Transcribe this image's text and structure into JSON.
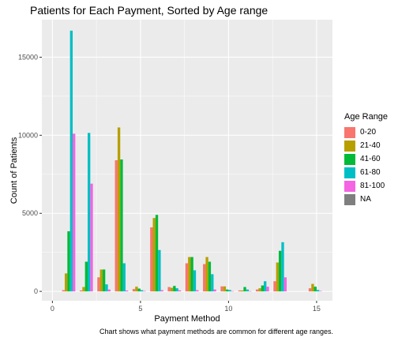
{
  "chart_data": {
    "type": "bar",
    "title": "Patients for Each Payment, Sorted by Age range",
    "xlabel": "Payment Method",
    "ylabel": "Count of Patients",
    "caption": "Chart shows what payment methods are common for different age ranges.",
    "xlim": [
      -0.6,
      15.9
    ],
    "ylim": [
      -600,
      17400
    ],
    "x_ticks": [
      0,
      5,
      10,
      15
    ],
    "y_ticks": [
      0,
      5000,
      10000,
      15000
    ],
    "grid": true,
    "legend_position": "right",
    "legend_title": "Age Range",
    "categories": [
      1,
      2,
      3,
      4,
      5,
      6,
      7,
      8,
      9,
      10,
      11,
      12,
      13,
      14,
      15
    ],
    "series": [
      {
        "name": "0-20",
        "color": "#F8766D",
        "values": [
          80,
          60,
          900,
          8400,
          150,
          4100,
          280,
          1800,
          1750,
          320,
          60,
          120,
          650,
          0,
          200
        ]
      },
      {
        "name": "21-40",
        "color": "#B79F00",
        "values": [
          1150,
          280,
          1400,
          10500,
          300,
          4700,
          230,
          2200,
          2200,
          320,
          60,
          200,
          1850,
          0,
          480
        ]
      },
      {
        "name": "41-60",
        "color": "#00BA38",
        "values": [
          3850,
          1900,
          1400,
          8450,
          180,
          4900,
          350,
          2200,
          1900,
          120,
          280,
          380,
          2600,
          0,
          300
        ]
      },
      {
        "name": "61-80",
        "color": "#00BFC4",
        "values": [
          16700,
          10150,
          450,
          1800,
          80,
          2650,
          200,
          1350,
          1100,
          90,
          120,
          650,
          3150,
          0,
          90
        ]
      },
      {
        "name": "81-100",
        "color": "#F564E3",
        "values": [
          10100,
          6900,
          120,
          60,
          30,
          80,
          70,
          80,
          120,
          20,
          20,
          300,
          900,
          0,
          30
        ]
      },
      {
        "name": "NA",
        "color": "#7F7F7F",
        "values": [
          0,
          0,
          0,
          0,
          0,
          0,
          0,
          0,
          0,
          0,
          0,
          0,
          0,
          0,
          0
        ]
      }
    ]
  }
}
